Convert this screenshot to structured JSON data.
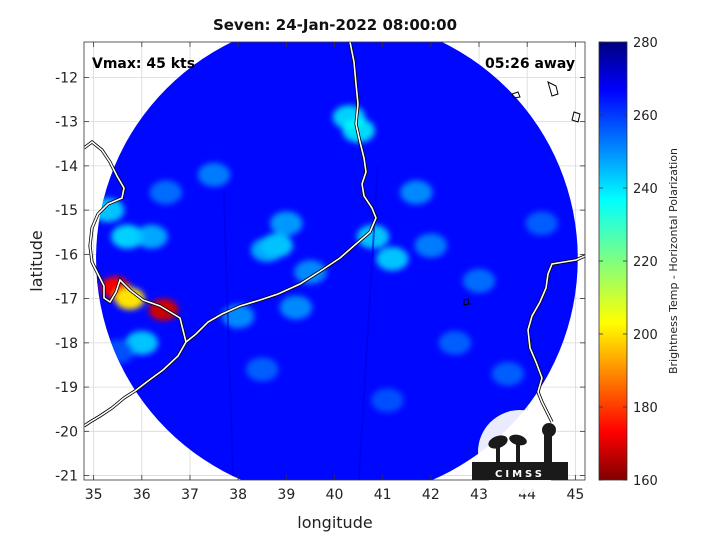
{
  "chart_data": {
    "type": "heatmap",
    "title": "Seven: 24-Jan-2022 08:00:00",
    "xlabel": "longitude",
    "ylabel": "latitude",
    "xlim": [
      34.8,
      45.2
    ],
    "ylim": [
      -21.1,
      -11.2
    ],
    "xticks": [
      35,
      36,
      37,
      38,
      39,
      40,
      41,
      42,
      43,
      44,
      45
    ],
    "yticks": [
      -12,
      -13,
      -14,
      -15,
      -16,
      -17,
      -18,
      -19,
      -20,
      -21
    ],
    "grid": true,
    "annotation_left": "Vmax: 45 kts",
    "annotation_right": "05:26 away",
    "swath": {
      "center_lon": 40.05,
      "center_lat": -16.1,
      "radius_deg": 5.0
    },
    "colorbar": {
      "label": "Brightness Temp - Horizontal Polarization",
      "min": 160,
      "max": 280,
      "ticks": [
        160,
        180,
        200,
        220,
        240,
        260,
        280
      ],
      "colormap": "jet"
    },
    "features": [
      {
        "lon": 36.45,
        "lat": -17.25,
        "value": 168
      },
      {
        "lon": 35.45,
        "lat": -16.75,
        "value": 172
      },
      {
        "lon": 35.75,
        "lat": -17.0,
        "value": 200
      },
      {
        "lon": 35.7,
        "lat": -15.6,
        "value": 238
      },
      {
        "lon": 35.3,
        "lat": -15.0,
        "value": 240
      },
      {
        "lon": 36.2,
        "lat": -15.6,
        "value": 244
      },
      {
        "lon": 36.0,
        "lat": -18.0,
        "value": 240
      },
      {
        "lon": 41.2,
        "lat": -16.1,
        "value": 240
      },
      {
        "lon": 40.8,
        "lat": -15.6,
        "value": 240
      },
      {
        "lon": 40.3,
        "lat": -12.9,
        "value": 238
      },
      {
        "lon": 40.5,
        "lat": -13.2,
        "value": 236
      },
      {
        "lon": 38.8,
        "lat": -15.8,
        "value": 240
      },
      {
        "lon": 38.6,
        "lat": -15.9,
        "value": 244
      },
      {
        "lon": 39.0,
        "lat": -15.3,
        "value": 246
      },
      {
        "lon": 39.5,
        "lat": -16.4,
        "value": 248
      },
      {
        "lon": 39.2,
        "lat": -17.2,
        "value": 248
      },
      {
        "lon": 41.7,
        "lat": -14.6,
        "value": 248
      },
      {
        "lon": 42.0,
        "lat": -15.8,
        "value": 250
      },
      {
        "lon": 38.0,
        "lat": -17.4,
        "value": 248
      },
      {
        "lon": 37.5,
        "lat": -14.2,
        "value": 250
      },
      {
        "lon": 38.5,
        "lat": -18.6,
        "value": 254
      },
      {
        "lon": 42.5,
        "lat": -18.0,
        "value": 254
      },
      {
        "lon": 43.0,
        "lat": -16.6,
        "value": 252
      },
      {
        "lon": 44.3,
        "lat": -15.3,
        "value": 254
      },
      {
        "lon": 43.6,
        "lat": -18.7,
        "value": 254
      },
      {
        "lon": 41.1,
        "lat": -19.3,
        "value": 256
      },
      {
        "lon": 36.5,
        "lat": -14.6,
        "value": 252
      },
      {
        "lon": 35.5,
        "lat": -18.2,
        "value": 256
      }
    ]
  },
  "logo": {
    "text": "CIMSS"
  }
}
